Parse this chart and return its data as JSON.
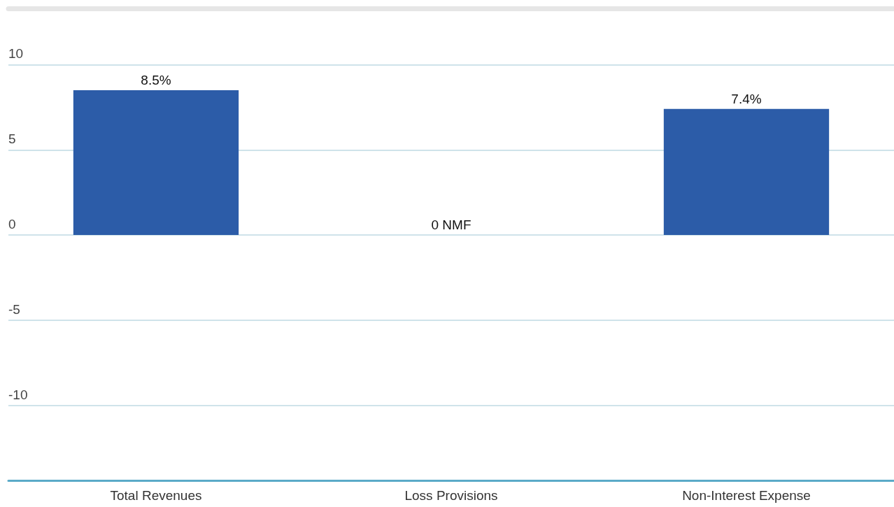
{
  "chart_data": {
    "type": "bar",
    "categories": [
      "Total Revenues",
      "Loss Provisions",
      "Non-Interest Expense"
    ],
    "values": [
      8.5,
      0,
      7.4
    ],
    "value_labels": [
      "8.5%",
      "0 NMF",
      "7.4%"
    ],
    "color": "#2c5ca8",
    "ylim": [
      -14.4,
      13.3
    ],
    "yticks": [
      -10,
      -5,
      0,
      5,
      10
    ],
    "grid": true
  }
}
